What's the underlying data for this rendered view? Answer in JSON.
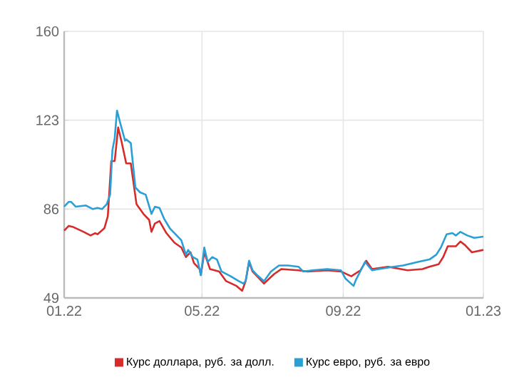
{
  "chart_data": {
    "type": "line",
    "xlim": [
      "2022-01-01",
      "2023-01-01"
    ],
    "ylim": [
      49,
      160
    ],
    "xticks": [
      {
        "value": "2022-01-01",
        "label": "01.22"
      },
      {
        "value": "2022-05-01",
        "label": "05.22"
      },
      {
        "value": "2022-09-01",
        "label": "09.22"
      },
      {
        "value": "2023-01-01",
        "label": "01.23"
      }
    ],
    "yticks": [
      49,
      86,
      123,
      160
    ],
    "grid": true,
    "legend": "bottom",
    "marker": "none",
    "line_style": "solid",
    "series": [
      {
        "name": "Курс доллара, руб. за долл.",
        "color": "#d62b2b",
        "x": [
          "2022-01-01",
          "2022-01-05",
          "2022-01-09",
          "2022-01-18",
          "2022-01-24",
          "2022-01-28",
          "2022-01-30",
          "2022-02-05",
          "2022-02-08",
          "2022-02-11",
          "2022-02-14",
          "2022-02-17",
          "2022-02-20",
          "2022-02-24",
          "2022-02-28",
          "2022-03-05",
          "2022-03-11",
          "2022-03-16",
          "2022-03-18",
          "2022-03-21",
          "2022-03-25",
          "2022-03-31",
          "2022-04-07",
          "2022-04-13",
          "2022-04-17",
          "2022-04-21",
          "2022-04-24",
          "2022-04-29",
          "2022-04-30",
          "2022-05-03",
          "2022-05-08",
          "2022-05-16",
          "2022-05-22",
          "2022-05-31",
          "2022-06-05",
          "2022-06-08",
          "2022-06-11",
          "2022-06-14",
          "2022-06-18",
          "2022-06-24",
          "2022-07-03",
          "2022-07-09",
          "2022-07-24",
          "2022-08-01",
          "2022-08-18",
          "2022-08-30",
          "2022-09-08",
          "2022-09-16",
          "2022-09-21",
          "2022-09-26",
          "2022-10-10",
          "2022-10-27",
          "2022-11-09",
          "2022-11-15",
          "2022-11-23",
          "2022-11-27",
          "2022-12-01",
          "2022-12-08",
          "2022-12-12",
          "2022-12-16",
          "2022-12-22",
          "2023-01-01"
        ],
        "values": [
          77,
          79,
          78.5,
          76.5,
          75,
          76,
          75.5,
          78,
          83,
          106,
          106,
          120,
          114,
          105,
          105,
          88,
          84,
          81.5,
          76.5,
          80,
          81,
          76,
          72,
          70,
          66,
          68,
          63.5,
          61,
          58.5,
          68,
          61,
          60,
          56,
          54,
          52,
          56,
          64,
          60,
          58,
          55,
          59,
          61,
          60.5,
          60,
          60.5,
          60,
          58,
          60.5,
          64.5,
          61,
          62,
          60.5,
          61,
          62,
          63,
          66,
          70.5,
          70.5,
          72.5,
          71,
          68,
          69
        ]
      },
      {
        "name": "Курс евро, руб. за евро",
        "color": "#2a9fd6",
        "x": [
          "2022-01-01",
          "2022-01-05",
          "2022-01-07",
          "2022-01-11",
          "2022-01-20",
          "2022-01-26",
          "2022-01-30",
          "2022-02-03",
          "2022-02-07",
          "2022-02-10",
          "2022-02-12",
          "2022-02-14",
          "2022-02-16",
          "2022-02-19",
          "2022-02-23",
          "2022-02-24",
          "2022-02-28",
          "2022-03-04",
          "2022-03-08",
          "2022-03-13",
          "2022-03-18",
          "2022-03-21",
          "2022-03-25",
          "2022-03-29",
          "2022-04-03",
          "2022-04-09",
          "2022-04-13",
          "2022-04-17",
          "2022-04-19",
          "2022-04-23",
          "2022-04-27",
          "2022-04-30",
          "2022-05-03",
          "2022-05-06",
          "2022-05-10",
          "2022-05-14",
          "2022-05-18",
          "2022-05-26",
          "2022-06-02",
          "2022-06-06",
          "2022-06-08",
          "2022-06-11",
          "2022-06-14",
          "2022-06-18",
          "2022-06-24",
          "2022-06-30",
          "2022-07-07",
          "2022-07-15",
          "2022-07-24",
          "2022-07-28",
          "2022-08-05",
          "2022-08-18",
          "2022-08-30",
          "2022-09-03",
          "2022-09-10",
          "2022-09-12",
          "2022-09-20",
          "2022-09-26",
          "2022-10-02",
          "2022-10-15",
          "2022-10-23",
          "2022-11-05",
          "2022-11-15",
          "2022-11-21",
          "2022-11-25",
          "2022-11-30",
          "2022-12-05",
          "2022-12-08",
          "2022-12-12",
          "2022-12-18",
          "2022-12-24",
          "2023-01-01"
        ],
        "values": [
          87,
          89,
          89,
          87,
          87.5,
          86,
          86.5,
          86,
          88,
          92,
          110.5,
          115.5,
          127,
          121.5,
          114.5,
          115,
          113.5,
          95,
          93,
          92,
          84,
          87,
          86.5,
          82,
          78,
          75,
          73,
          67,
          69,
          66,
          65,
          58.5,
          70,
          64,
          66,
          65,
          60,
          58,
          56,
          55,
          56,
          64.5,
          60.5,
          58.5,
          56,
          60,
          62.5,
          62.5,
          62,
          60,
          60.5,
          61,
          60.5,
          57,
          54,
          56.5,
          64,
          60.5,
          61,
          62,
          62.5,
          64,
          65,
          67,
          70,
          75.5,
          76,
          75,
          76.5,
          75,
          74,
          74.5
        ]
      }
    ]
  }
}
